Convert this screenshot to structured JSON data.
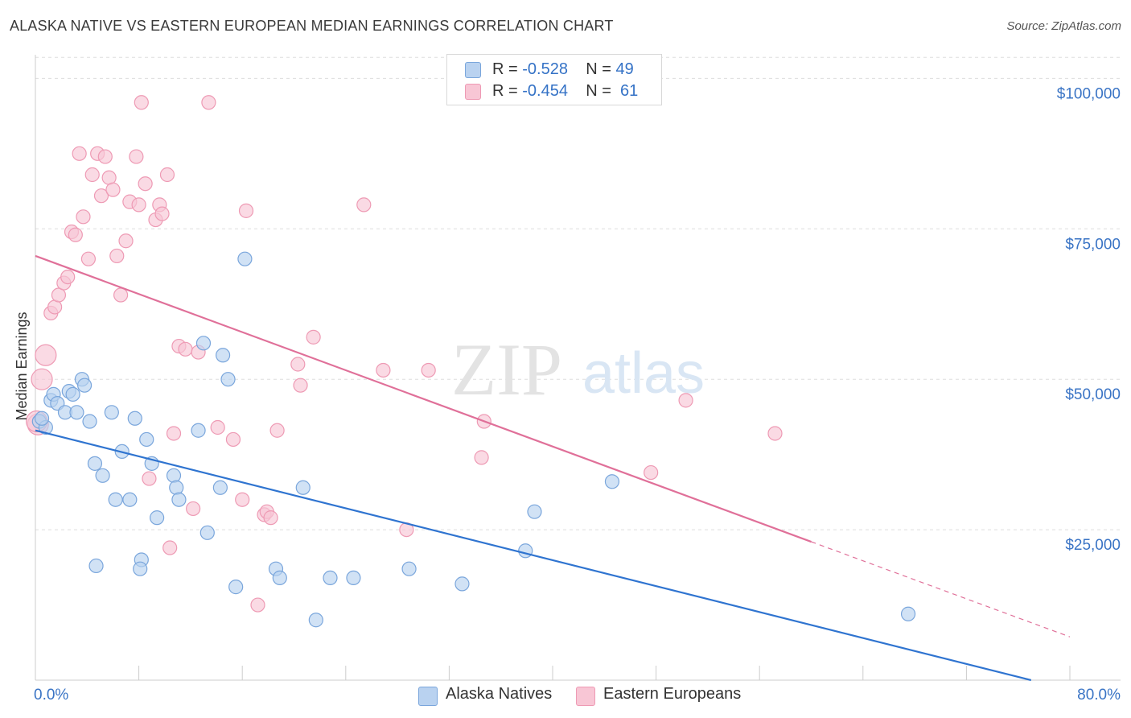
{
  "title": "ALASKA NATIVE VS EASTERN EUROPEAN MEDIAN EARNINGS CORRELATION CHART",
  "source": "Source: ZipAtlas.com",
  "watermark": {
    "zip": "ZIP",
    "atlas": "atlas"
  },
  "legend": {
    "r_label": "R =",
    "n_label": "N =",
    "series": [
      {
        "r": "-0.528",
        "n": "49"
      },
      {
        "r": "-0.454",
        "n": "61"
      }
    ]
  },
  "bottom_legend": [
    "Alaska Natives",
    "Eastern Europeans"
  ],
  "colors": {
    "blue_fill": "#b9d2f0",
    "blue_stroke": "#7aa6dc",
    "blue_line": "#2f74d0",
    "pink_fill": "#f8c6d5",
    "pink_stroke": "#ee9ab4",
    "pink_line": "#e07099",
    "axis_text": "#3a74c5",
    "grid": "#dddddd"
  },
  "chart_data": {
    "type": "scatter",
    "title": "ALASKA NATIVE VS EASTERN EUROPEAN MEDIAN EARNINGS CORRELATION CHART",
    "xlabel": "",
    "ylabel": "Median Earnings",
    "xlim": [
      0,
      80
    ],
    "ylim": [
      0,
      105000
    ],
    "x_tick_labels": [
      "0.0%",
      "80.0%"
    ],
    "y_ticks": [
      25000,
      50000,
      75000,
      100000
    ],
    "y_tick_labels": [
      "$25,000",
      "$50,000",
      "$75,000",
      "$100,000"
    ],
    "grid": true,
    "legend_position": "top-center",
    "series": [
      {
        "name": "Alaska Natives",
        "color": "#7aa6dc",
        "trend": {
          "x": [
            0,
            77
          ],
          "y": [
            41500,
            0
          ]
        },
        "points": [
          [
            0.3,
            43000
          ],
          [
            0.8,
            42000
          ],
          [
            1.2,
            46500
          ],
          [
            1.4,
            47500
          ],
          [
            1.7,
            46000
          ],
          [
            2.3,
            44500
          ],
          [
            2.6,
            48000
          ],
          [
            2.9,
            47500
          ],
          [
            3.2,
            44500
          ],
          [
            3.6,
            50000
          ],
          [
            3.8,
            49000
          ],
          [
            4.2,
            43000
          ],
          [
            4.6,
            36000
          ],
          [
            5.2,
            34000
          ],
          [
            5.9,
            44500
          ],
          [
            6.2,
            30000
          ],
          [
            6.7,
            38000
          ],
          [
            7.3,
            30000
          ],
          [
            7.7,
            43500
          ],
          [
            8.2,
            20000
          ],
          [
            8.6,
            40000
          ],
          [
            9.0,
            36000
          ],
          [
            9.4,
            27000
          ],
          [
            10.7,
            34000
          ],
          [
            10.9,
            32000
          ],
          [
            11.1,
            30000
          ],
          [
            12.6,
            41500
          ],
          [
            13.0,
            56000
          ],
          [
            13.3,
            24500
          ],
          [
            14.5,
            54000
          ],
          [
            14.3,
            32000
          ],
          [
            14.9,
            50000
          ],
          [
            15.5,
            15500
          ],
          [
            16.2,
            70000
          ],
          [
            18.6,
            18500
          ],
          [
            18.9,
            17000
          ],
          [
            20.7,
            32000
          ],
          [
            21.7,
            10000
          ],
          [
            22.8,
            17000
          ],
          [
            24.6,
            17000
          ],
          [
            28.9,
            18500
          ],
          [
            33.0,
            16000
          ],
          [
            37.9,
            21500
          ],
          [
            38.6,
            28000
          ],
          [
            44.6,
            33000
          ],
          [
            67.5,
            11000
          ],
          [
            4.7,
            19000
          ],
          [
            8.1,
            18500
          ],
          [
            0.5,
            43500
          ]
        ]
      },
      {
        "name": "Eastern Europeans",
        "color": "#ee9ab4",
        "trend": {
          "x": [
            0,
            60
          ],
          "y": [
            70500,
            23000
          ]
        },
        "trend_dashed": {
          "x": [
            60,
            80
          ],
          "y": [
            23000,
            7200
          ]
        },
        "points": [
          [
            0.2,
            42500
          ],
          [
            0.5,
            50000
          ],
          [
            0.8,
            54000
          ],
          [
            1.2,
            61000
          ],
          [
            1.5,
            62000
          ],
          [
            1.8,
            64000
          ],
          [
            2.2,
            66000
          ],
          [
            2.5,
            67000
          ],
          [
            2.8,
            74500
          ],
          [
            3.1,
            74000
          ],
          [
            3.4,
            87500
          ],
          [
            3.7,
            77000
          ],
          [
            4.1,
            70000
          ],
          [
            4.4,
            84000
          ],
          [
            4.8,
            87500
          ],
          [
            5.1,
            80500
          ],
          [
            5.4,
            87000
          ],
          [
            5.7,
            83500
          ],
          [
            6.0,
            81500
          ],
          [
            6.3,
            70500
          ],
          [
            6.6,
            64000
          ],
          [
            7.0,
            73000
          ],
          [
            7.3,
            79500
          ],
          [
            7.8,
            87000
          ],
          [
            8.0,
            79000
          ],
          [
            8.2,
            96000
          ],
          [
            8.5,
            82500
          ],
          [
            8.8,
            33500
          ],
          [
            9.3,
            76500
          ],
          [
            9.6,
            79000
          ],
          [
            9.8,
            77500
          ],
          [
            10.2,
            84000
          ],
          [
            10.4,
            22000
          ],
          [
            10.7,
            41000
          ],
          [
            11.1,
            55500
          ],
          [
            11.6,
            55000
          ],
          [
            12.2,
            28500
          ],
          [
            12.6,
            54500
          ],
          [
            13.4,
            96000
          ],
          [
            14.1,
            42000
          ],
          [
            15.3,
            40000
          ],
          [
            16.0,
            30000
          ],
          [
            16.3,
            78000
          ],
          [
            17.2,
            12500
          ],
          [
            17.7,
            27500
          ],
          [
            17.9,
            28000
          ],
          [
            18.2,
            27000
          ],
          [
            18.7,
            41500
          ],
          [
            20.3,
            52500
          ],
          [
            20.5,
            49000
          ],
          [
            21.5,
            57000
          ],
          [
            25.4,
            79000
          ],
          [
            26.9,
            51500
          ],
          [
            28.7,
            25000
          ],
          [
            30.4,
            51500
          ],
          [
            34.7,
            43000
          ],
          [
            34.5,
            37000
          ],
          [
            47.6,
            34500
          ],
          [
            50.3,
            46500
          ],
          [
            57.2,
            41000
          ],
          [
            0.1,
            43000
          ]
        ]
      }
    ]
  }
}
